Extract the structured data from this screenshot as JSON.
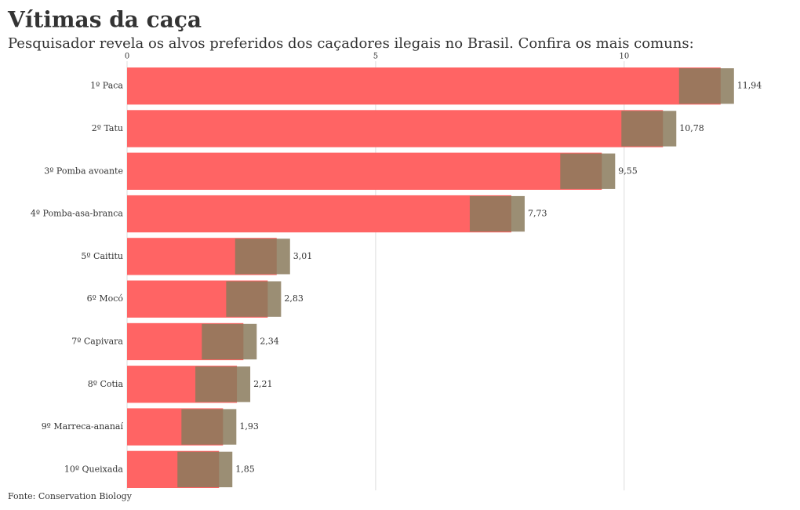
{
  "chart_data": {
    "type": "bar",
    "orientation": "horizontal",
    "title": "Vítimas da caça",
    "subtitle": "Pesquisador revela os alvos preferidos dos caçadores ilegais no Brasil. Confira os mais comuns:",
    "categories": [
      "1º Paca",
      "2º Tatu",
      "3º Pomba avoante",
      "4º Pomba-asa-branca",
      "5º Caititu",
      "6º Mocó",
      "7º Capivara",
      "8º Cotia",
      "9º Marreca-ananaí",
      "10º Queixada"
    ],
    "values": [
      11.94,
      10.78,
      9.55,
      7.73,
      3.01,
      2.83,
      2.34,
      2.21,
      1.93,
      1.85
    ],
    "value_labels": [
      "11,94",
      "10,78",
      "9,55",
      "7,73",
      "3,01",
      "2,83",
      "2,34",
      "2,21",
      "1,93",
      "1,85"
    ],
    "color": "#ff6464",
    "xlim": [
      0,
      13.3
    ],
    "xticks": [
      0,
      5,
      10
    ],
    "grid": true,
    "source": "Fonte: Conservation Biology"
  }
}
